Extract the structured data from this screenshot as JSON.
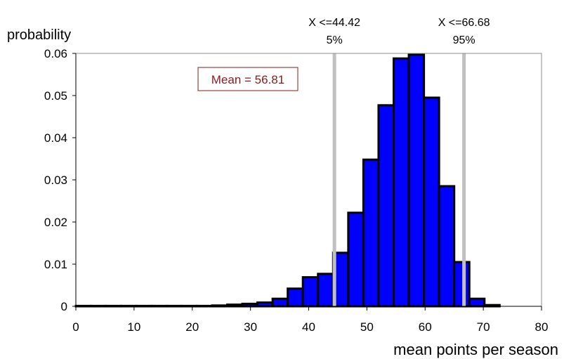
{
  "chart_data": {
    "type": "bar",
    "xlabel": "mean points per season",
    "ylabel": "probability",
    "xlim": [
      0,
      80
    ],
    "ylim": [
      0,
      0.06
    ],
    "x_ticks": [
      0,
      10,
      20,
      30,
      40,
      50,
      60,
      70,
      80
    ],
    "y_ticks": [
      0,
      0.01,
      0.02,
      0.03,
      0.04,
      0.05,
      0.06
    ],
    "y_tick_labels": [
      "0",
      "0.01",
      "0.02",
      "0.03",
      "0.04",
      "0.05",
      "0.06"
    ],
    "bin_width": 2.6,
    "bins": [
      {
        "x0": 0.0,
        "value": 0.0001
      },
      {
        "x0": 2.6,
        "value": 0.0001
      },
      {
        "x0": 5.2,
        "value": 0.0001
      },
      {
        "x0": 7.8,
        "value": 0.0001
      },
      {
        "x0": 10.4,
        "value": 0.0001
      },
      {
        "x0": 13.0,
        "value": 0.0001
      },
      {
        "x0": 15.6,
        "value": 0.0001
      },
      {
        "x0": 18.2,
        "value": 0.0001
      },
      {
        "x0": 20.8,
        "value": 0.0001
      },
      {
        "x0": 23.4,
        "value": 0.0002
      },
      {
        "x0": 26.0,
        "value": 0.0004
      },
      {
        "x0": 28.6,
        "value": 0.0006
      },
      {
        "x0": 31.2,
        "value": 0.0009
      },
      {
        "x0": 33.8,
        "value": 0.0018
      },
      {
        "x0": 36.4,
        "value": 0.0042
      },
      {
        "x0": 39.0,
        "value": 0.0069
      },
      {
        "x0": 41.6,
        "value": 0.0077
      },
      {
        "x0": 44.2,
        "value": 0.0127
      },
      {
        "x0": 46.8,
        "value": 0.0222
      },
      {
        "x0": 49.4,
        "value": 0.0348
      },
      {
        "x0": 52.0,
        "value": 0.0477
      },
      {
        "x0": 54.6,
        "value": 0.0588
      },
      {
        "x0": 57.2,
        "value": 0.0597
      },
      {
        "x0": 59.8,
        "value": 0.0495
      },
      {
        "x0": 62.4,
        "value": 0.0285
      },
      {
        "x0": 65.0,
        "value": 0.0105
      },
      {
        "x0": 67.6,
        "value": 0.0018
      },
      {
        "x0": 70.2,
        "value": 0.0003
      }
    ],
    "bar_color": "#0000ff",
    "bar_edge_color": "#000000",
    "grid": false,
    "annotations": {
      "mean_label": "Mean = 56.81",
      "mean_label_color": "#8b1a1a",
      "markers": [
        {
          "x": 44.42,
          "label": "X <=44.42",
          "percent": "5%"
        },
        {
          "x": 66.68,
          "label": "X <=66.68",
          "percent": "95%"
        }
      ],
      "marker_color": "#c0c0c0"
    }
  }
}
